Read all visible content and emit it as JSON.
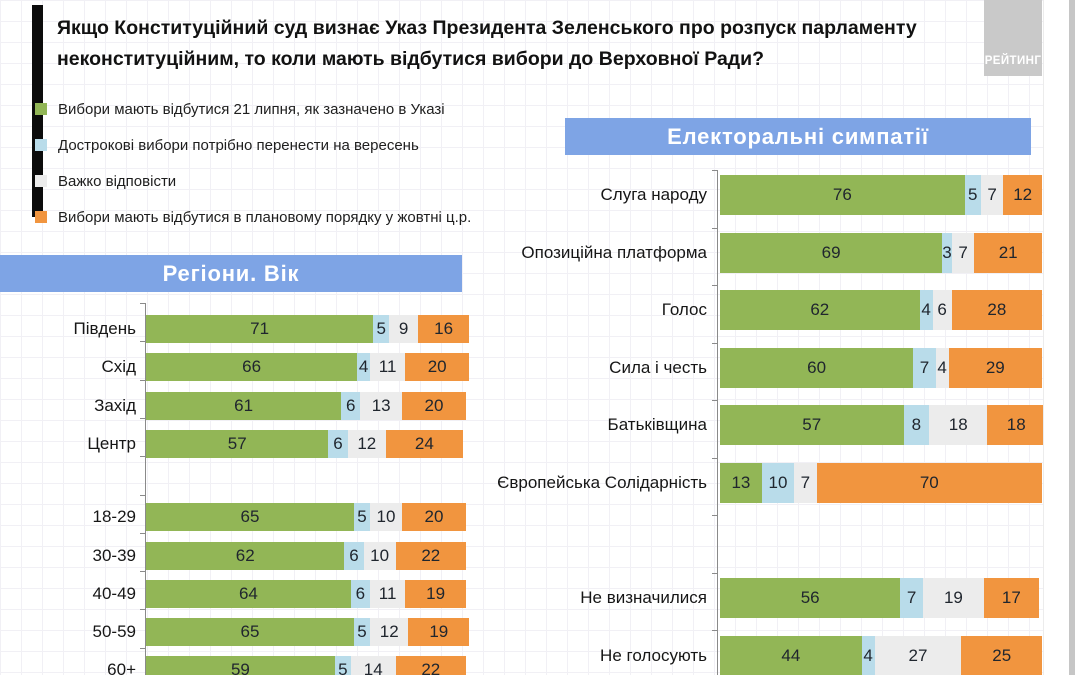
{
  "header": {
    "title": "Якщо Конституційний суд визнає Указ Президента Зеленського про розпуск парламенту неконституційним, то коли мають відбутися вибори до Верховної Ради?",
    "logo": "РЕЙТИНГ"
  },
  "colors": {
    "green": "#92B656",
    "light_blue": "#B9DCEA",
    "gray": "#ECECEC",
    "orange": "#F1953F",
    "header_blue": "#7EA4E5",
    "logo_gray": "#C9C9C9",
    "accent_bar": "#0C0C0C",
    "value_text": "#20262E"
  },
  "legend": {
    "items": [
      {
        "key": "green",
        "label": "Вибори мають відбутися 21 липня, як зазначено в Указі"
      },
      {
        "key": "light_blue",
        "label": "Дострокові вибори потрібно перенести на вересень"
      },
      {
        "key": "gray",
        "label": "Важко відповісти"
      },
      {
        "key": "orange",
        "label": "Вибори мають відбутися в плановому порядку у жовтні ц.р."
      }
    ]
  },
  "chart_data": [
    {
      "type": "bar",
      "orientation": "horizontal",
      "stacked": true,
      "unit": "%",
      "xlim": [
        0,
        100
      ],
      "title": "Регіони. Вік",
      "series_keys": [
        "green",
        "light_blue",
        "gray",
        "orange"
      ],
      "series_labels": [
        "Вибори мають відбутися 21 липня, як зазначено в Указі",
        "Дострокові вибори потрібно перенести на вересень",
        "Важко відповісти",
        "Вибори мають відбутися в плановому порядку у жовтні ц.р."
      ],
      "categories": [
        "Південь",
        "Схід",
        "Захід",
        "Центр",
        "18-29",
        "30-39",
        "40-49",
        "50-59",
        "60+"
      ],
      "rows": [
        [
          71,
          5,
          9,
          16
        ],
        [
          66,
          4,
          11,
          20
        ],
        [
          61,
          6,
          13,
          20
        ],
        [
          57,
          6,
          12,
          24
        ],
        [
          65,
          5,
          10,
          20
        ],
        [
          62,
          6,
          10,
          22
        ],
        [
          64,
          6,
          11,
          19
        ],
        [
          65,
          5,
          12,
          19
        ],
        [
          59,
          5,
          14,
          22
        ]
      ],
      "group_gap_after_index": 3
    },
    {
      "type": "bar",
      "orientation": "horizontal",
      "stacked": true,
      "unit": "%",
      "xlim": [
        0,
        100
      ],
      "title": "Електоральні симпатії",
      "series_keys": [
        "green",
        "light_blue",
        "gray",
        "orange"
      ],
      "series_labels": [
        "Вибори мають відбутися 21 липня, як зазначено в Указі",
        "Дострокові вибори потрібно перенести на вересень",
        "Важко відповісти",
        "Вибори мають відбутися в плановому порядку у жовтні ц.р."
      ],
      "categories": [
        "Слуга народу",
        "Опозиційна платформа",
        "Голос",
        "Сила і честь",
        "Батьківщина",
        "Європейська Солідарність",
        "Не визначилися",
        "Не голосують"
      ],
      "rows": [
        [
          76,
          5,
          7,
          12
        ],
        [
          69,
          3,
          7,
          21
        ],
        [
          62,
          4,
          6,
          28
        ],
        [
          60,
          7,
          4,
          29
        ],
        [
          57,
          8,
          18,
          18
        ],
        [
          13,
          10,
          7,
          70
        ],
        [
          56,
          7,
          19,
          17
        ],
        [
          44,
          4,
          27,
          25
        ]
      ],
      "group_gap_after_index": 5
    }
  ]
}
